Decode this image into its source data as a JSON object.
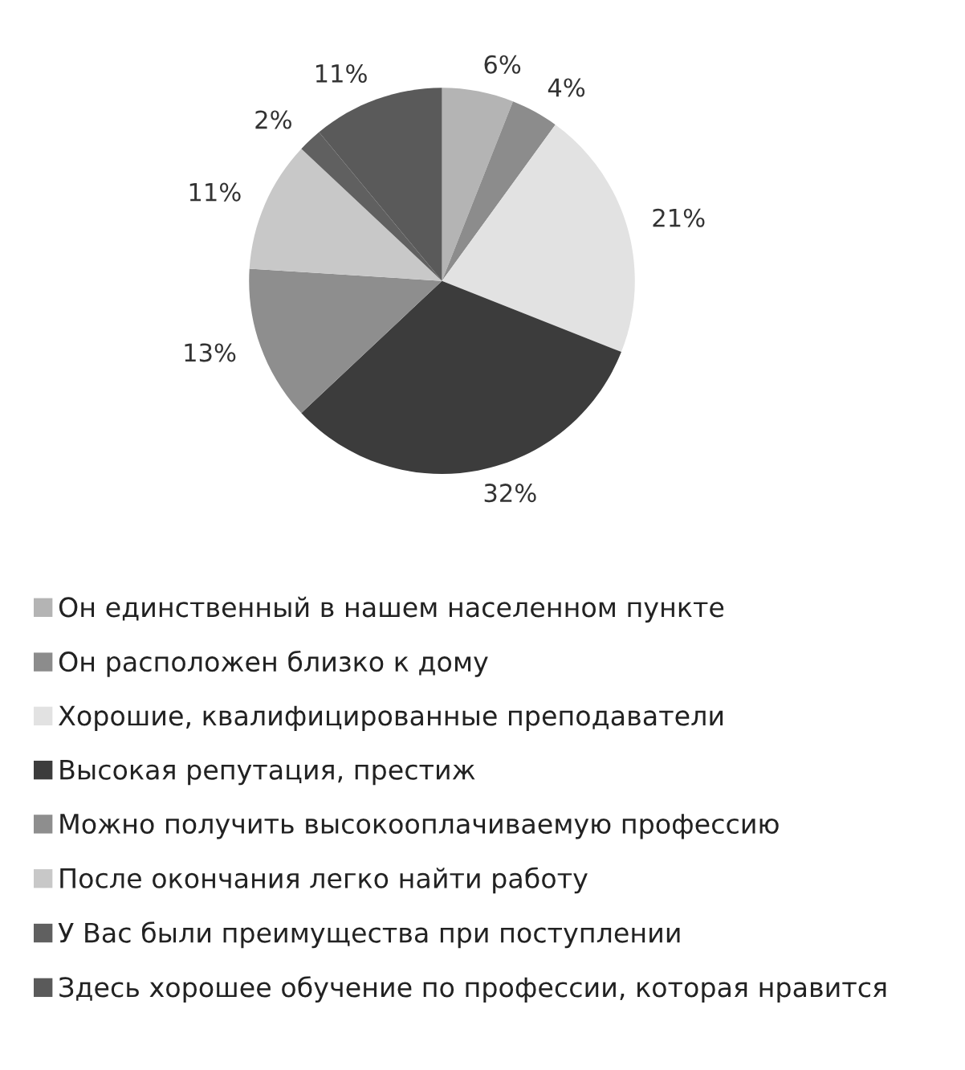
{
  "chart_data": {
    "type": "pie",
    "categories": [
      "Он единственный в нашем населенном пункте",
      "Он расположен близко к дому",
      "Хорошие, квалифицированные преподаватели",
      "Высокая репутация, престиж",
      "Можно получить высокооплачиваемую профессию",
      "После окончания легко найти работу",
      "У Вас были преимущества при поступлении",
      "Здесь хорошее обучение по профессии, которая нравится"
    ],
    "values": [
      6,
      4,
      21,
      32,
      13,
      11,
      2,
      11
    ],
    "value_labels": [
      "6%",
      "4%",
      "21%",
      "32%",
      "13%",
      "11%",
      "2%",
      "11%"
    ],
    "colors": [
      "#b4b4b4",
      "#8c8c8c",
      "#e2e2e2",
      "#3c3c3c",
      "#8e8e8e",
      "#c8c8c8",
      "#606060",
      "#5a5a5a"
    ],
    "legend": "bottom"
  }
}
